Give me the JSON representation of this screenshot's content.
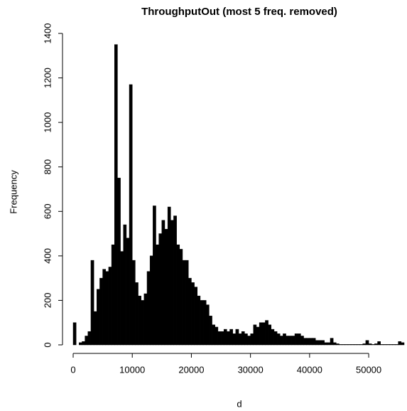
{
  "chart_data": {
    "type": "histogram",
    "title": "ThroughputOut  (most 5 freq. removed)",
    "x_label": "d",
    "y_label": "Frequency",
    "color": "#000000",
    "bins": [
      0,
      500,
      1000,
      1500,
      2000,
      2500,
      3000,
      3500,
      4000,
      4500,
      5000,
      5500,
      6000,
      6500,
      7000,
      7500,
      8000,
      8500,
      9000,
      9500,
      10000,
      10500,
      11000,
      11500,
      12000,
      12500,
      13000,
      13500,
      14000,
      14500,
      15000,
      15500,
      16000,
      16500,
      17000,
      17500,
      18000,
      18500,
      19000,
      19500,
      20000,
      20500,
      21000,
      21500,
      22000,
      22500,
      23000,
      23500,
      24000,
      24500,
      25000,
      25500,
      26000,
      26500,
      27000,
      27500,
      28000,
      28500,
      29000,
      29500,
      30000,
      30500,
      31000,
      31500,
      32000,
      32500,
      33000,
      33500,
      34000,
      34500,
      35000,
      35500,
      36000,
      36500,
      37000,
      37500,
      38000,
      38500,
      39000,
      39500,
      40000,
      40500,
      41000,
      41500,
      42000,
      42500,
      43000,
      43500,
      44000,
      44500,
      45000,
      45500,
      46000,
      46500,
      47000,
      47500,
      48000,
      48500,
      49000,
      49500,
      50000,
      50500,
      51000,
      51500,
      52000,
      52500,
      53000,
      53500,
      54000,
      54500,
      55000,
      55500,
      56000
    ],
    "values": [
      100,
      0,
      10,
      15,
      40,
      60,
      380,
      150,
      250,
      300,
      340,
      330,
      350,
      450,
      1350,
      750,
      420,
      540,
      480,
      1170,
      380,
      280,
      220,
      200,
      230,
      330,
      400,
      625,
      450,
      500,
      560,
      520,
      620,
      560,
      580,
      450,
      430,
      380,
      380,
      300,
      280,
      260,
      220,
      200,
      200,
      180,
      130,
      90,
      80,
      60,
      60,
      70,
      60,
      70,
      50,
      70,
      50,
      60,
      50,
      40,
      50,
      90,
      80,
      100,
      100,
      110,
      90,
      70,
      60,
      50,
      40,
      50,
      40,
      40,
      40,
      50,
      50,
      40,
      30,
      30,
      30,
      30,
      20,
      20,
      20,
      10,
      10,
      30,
      10,
      5,
      2,
      2,
      2,
      2,
      2,
      2,
      2,
      2,
      5,
      20,
      5,
      2,
      5,
      15,
      2,
      2,
      2,
      2,
      2,
      2,
      15,
      10
    ],
    "xlim": [
      0,
      56000
    ],
    "ylim": [
      0,
      1400
    ],
    "xticks": [
      0,
      10000,
      20000,
      30000,
      40000,
      50000
    ],
    "yticks": [
      0,
      200,
      400,
      600,
      800,
      1000,
      1200,
      1400
    ]
  }
}
